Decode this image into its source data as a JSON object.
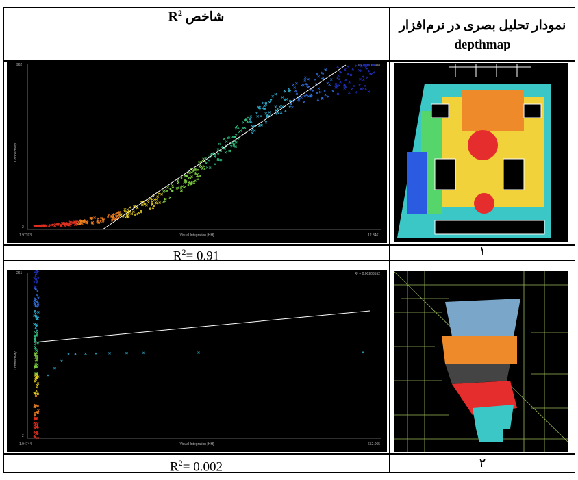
{
  "header": {
    "col1": {
      "text": "شاخص",
      "symbol": "R",
      "sup": "2"
    },
    "col2": {
      "line1": "نمودار تحلیل بصری در نرم‌افزار",
      "line2": "depthmap"
    }
  },
  "rows": [
    {
      "plot": {
        "y_max": "962",
        "y_min": "2",
        "x_min": "1.97393",
        "x_max": "12.3461",
        "x_label": "Visual Integration [HH]",
        "y_label": "Connectivity",
        "r2_label": "R² = 0.916608"
      },
      "r2": {
        "symbol": "R",
        "sup": "2",
        "value": "= 0.91"
      },
      "index": "۱"
    },
    {
      "plot": {
        "y_max": "261",
        "y_min": "2",
        "x_min": "1.94744",
        "x_max": "652.065",
        "x_label": "Visual Integration [HH]",
        "y_label": "Connectivity",
        "r2_label": "R² = 0.00203552"
      },
      "r2": {
        "symbol": "R",
        "sup": "2",
        "value": "= 0.002"
      },
      "index": "۲"
    }
  ]
}
